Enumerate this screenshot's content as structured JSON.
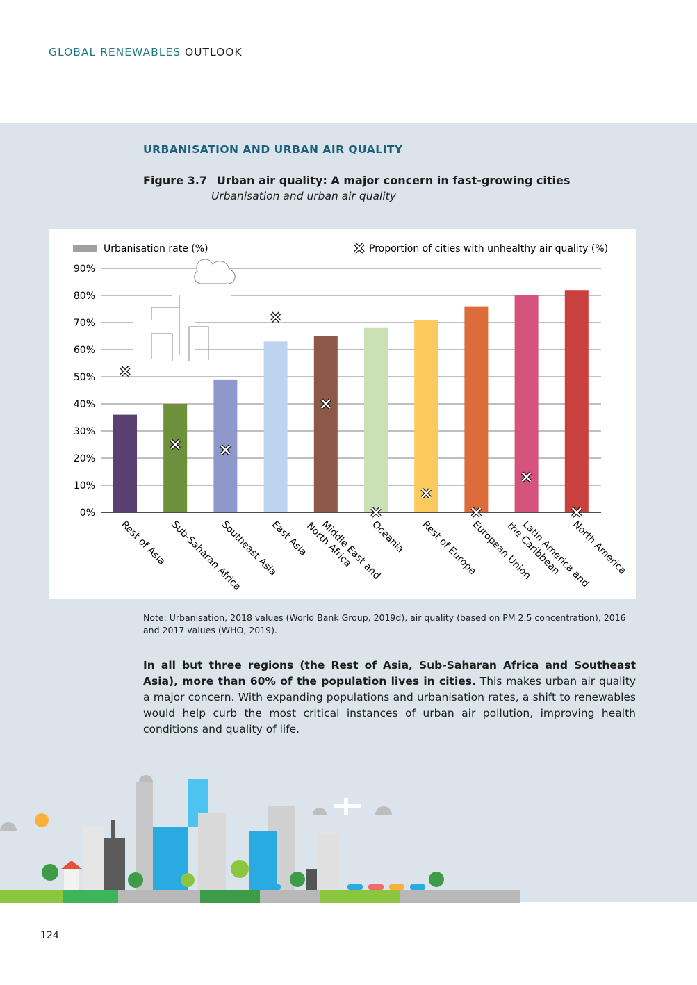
{
  "header": {
    "part1": "GLOBAL RENEWABLES",
    "part2": "OUTLOOK"
  },
  "section_title": "URBANISATION AND URBAN AIR QUALITY",
  "figure": {
    "number": "Figure 3.7",
    "title": "Urban air quality: A major concern in fast-growing cities",
    "subtitle": "Urbanisation and urban air quality"
  },
  "chart_data": {
    "type": "bar",
    "categories": [
      "Rest of Asia",
      "Sub-Saharan Africa",
      "Southeast Asia",
      "East Asia",
      "Middle East and North Africa",
      "Oceania",
      "Rest of Europe",
      "European Union",
      "Latin America and the Caribbean",
      "North America"
    ],
    "category_label_lines": [
      [
        "Rest of Asia"
      ],
      [
        "Sub-Saharan Africa"
      ],
      [
        "Southeast Asia"
      ],
      [
        "East Asia"
      ],
      [
        "Middle East and",
        "North Africa"
      ],
      [
        "Oceania"
      ],
      [
        "Rest of Europe"
      ],
      [
        "European Union"
      ],
      [
        "Latin America and",
        "the Caribbean"
      ],
      [
        "North America"
      ]
    ],
    "series": [
      {
        "name": "Urbanisation rate (%)",
        "type": "bar",
        "values": [
          36,
          40,
          49,
          63,
          65,
          68,
          71,
          76,
          80,
          82
        ]
      },
      {
        "name": "Proportion of cities with unhealthy air quality (%)",
        "type": "scatter",
        "marker": "cross",
        "values": [
          52,
          25,
          23,
          72,
          40,
          0,
          7,
          0,
          13,
          0
        ]
      }
    ],
    "bar_colors": [
      "#5a3f73",
      "#6e8f3b",
      "#8f98cb",
      "#bdd4f0",
      "#8e5848",
      "#cae0b5",
      "#fbc95c",
      "#dd6c3b",
      "#d4527b",
      "#c9403f"
    ],
    "legend_swatch_color": "#a0a0a0",
    "ylim": [
      0,
      90
    ],
    "yticks": [
      "0%",
      "10%",
      "20%",
      "30%",
      "40%",
      "50%",
      "60%",
      "70%",
      "80%",
      "90%"
    ],
    "grid": true,
    "legend_placement": "top"
  },
  "note": "Note: Urbanisation, 2018 values (World Bank Group, 2019d), air quality (based on PM 2.5 concentration), 2016 and 2017 values (WHO, 2019).",
  "body": {
    "bold": "In all but three regions (the Rest of Asia, Sub-Saharan Africa and Southeast Asia), more than 60% of the population lives in cities.",
    "rest": " This makes urban air quality a major concern. With expanding populations and urbanisation rates, a shift to renewables would help curb the most critical instances of urban air pollution, improving health conditions and quality of life."
  },
  "page_number": "124"
}
